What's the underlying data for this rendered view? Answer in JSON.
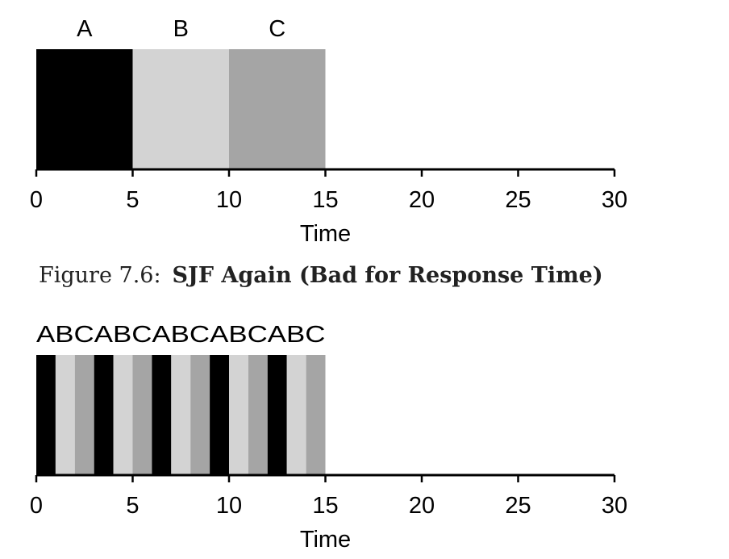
{
  "figure_caption": {
    "prefix": "Figure 7.6:",
    "title": "SJF Again (Bad for Response Time)"
  },
  "chart_data": [
    {
      "type": "gantt",
      "xlabel": "Time",
      "xlim": [
        0,
        30
      ],
      "xticks": [
        0,
        5,
        10,
        15,
        20,
        25,
        30
      ],
      "jobs": {
        "A": "#000000",
        "B": "#d3d3d3",
        "C": "#a5a5a5"
      },
      "segments": [
        {
          "job": "A",
          "start": 0,
          "end": 5
        },
        {
          "job": "B",
          "start": 5,
          "end": 10
        },
        {
          "job": "C",
          "start": 10,
          "end": 15
        }
      ],
      "labels": [
        {
          "text": "A",
          "at": 2.5
        },
        {
          "text": "B",
          "at": 7.5
        },
        {
          "text": "C",
          "at": 12.5
        }
      ]
    },
    {
      "type": "gantt",
      "xlabel": "Time",
      "xlim": [
        0,
        30
      ],
      "xticks": [
        0,
        5,
        10,
        15,
        20,
        25,
        30
      ],
      "jobs": {
        "A": "#000000",
        "B": "#d3d3d3",
        "C": "#a5a5a5"
      },
      "slice_label": "ABCABCABCABCABC",
      "segments": [
        {
          "job": "A",
          "start": 0,
          "end": 1
        },
        {
          "job": "B",
          "start": 1,
          "end": 2
        },
        {
          "job": "C",
          "start": 2,
          "end": 3
        },
        {
          "job": "A",
          "start": 3,
          "end": 4
        },
        {
          "job": "B",
          "start": 4,
          "end": 5
        },
        {
          "job": "C",
          "start": 5,
          "end": 6
        },
        {
          "job": "A",
          "start": 6,
          "end": 7
        },
        {
          "job": "B",
          "start": 7,
          "end": 8
        },
        {
          "job": "C",
          "start": 8,
          "end": 9
        },
        {
          "job": "A",
          "start": 9,
          "end": 10
        },
        {
          "job": "B",
          "start": 10,
          "end": 11
        },
        {
          "job": "C",
          "start": 11,
          "end": 12
        },
        {
          "job": "A",
          "start": 12,
          "end": 13
        },
        {
          "job": "B",
          "start": 13,
          "end": 14
        },
        {
          "job": "C",
          "start": 14,
          "end": 15
        }
      ]
    }
  ]
}
